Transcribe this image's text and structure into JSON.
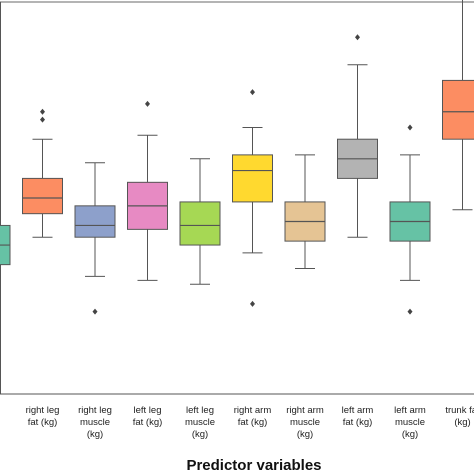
{
  "chart_data": {
    "type": "box",
    "xlabel": "Predictor variables",
    "ylabel": "",
    "ylim": [
      0,
      100
    ],
    "grid": false,
    "categories": [
      [
        "e"
      ],
      [
        "right leg",
        "fat (kg)"
      ],
      [
        "right leg",
        "muscle",
        "(kg)"
      ],
      [
        "left leg",
        "fat (kg)"
      ],
      [
        "left leg",
        "muscle",
        "(kg)"
      ],
      [
        "right arm",
        "fat (kg)"
      ],
      [
        "right arm",
        "muscle",
        "(kg)"
      ],
      [
        "left arm",
        "fat (kg)"
      ],
      [
        "left arm",
        "muscle",
        "(kg)"
      ],
      [
        "trunk fat",
        "(kg)"
      ]
    ],
    "boxes": [
      {
        "color": "#66c2a5",
        "whisker_low": 28,
        "q1": 33,
        "median": 38,
        "q3": 43,
        "whisker_high": 49,
        "outliers": []
      },
      {
        "color": "#fc8d62",
        "whisker_low": 40,
        "q1": 46,
        "median": 50,
        "q3": 55,
        "whisker_high": 65,
        "outliers": [
          70,
          72
        ]
      },
      {
        "color": "#8da0cb",
        "whisker_low": 30,
        "q1": 40,
        "median": 43,
        "q3": 48,
        "whisker_high": 59,
        "outliers": [
          21
        ]
      },
      {
        "color": "#e78ac3",
        "whisker_low": 29,
        "q1": 42,
        "median": 48,
        "q3": 54,
        "whisker_high": 66,
        "outliers": [
          74
        ]
      },
      {
        "color": "#a6d854",
        "whisker_low": 28,
        "q1": 38,
        "median": 43,
        "q3": 49,
        "whisker_high": 60,
        "outliers": []
      },
      {
        "color": "#ffd92f",
        "whisker_low": 36,
        "q1": 49,
        "median": 57,
        "q3": 61,
        "whisker_high": 68,
        "outliers": [
          77,
          23
        ]
      },
      {
        "color": "#e5c494",
        "whisker_low": 32,
        "q1": 39,
        "median": 44,
        "q3": 49,
        "whisker_high": 61,
        "outliers": []
      },
      {
        "color": "#b3b3b3",
        "whisker_low": 40,
        "q1": 55,
        "median": 60,
        "q3": 65,
        "whisker_high": 84,
        "outliers": [
          91
        ]
      },
      {
        "color": "#66c2a5",
        "whisker_low": 29,
        "q1": 39,
        "median": 44,
        "q3": 49,
        "whisker_high": 61,
        "outliers": [
          68,
          21
        ]
      },
      {
        "color": "#fc8d62",
        "whisker_low": 47,
        "q1": 65,
        "median": 72,
        "q3": 80,
        "whisker_high": 101,
        "outliers": []
      }
    ]
  }
}
